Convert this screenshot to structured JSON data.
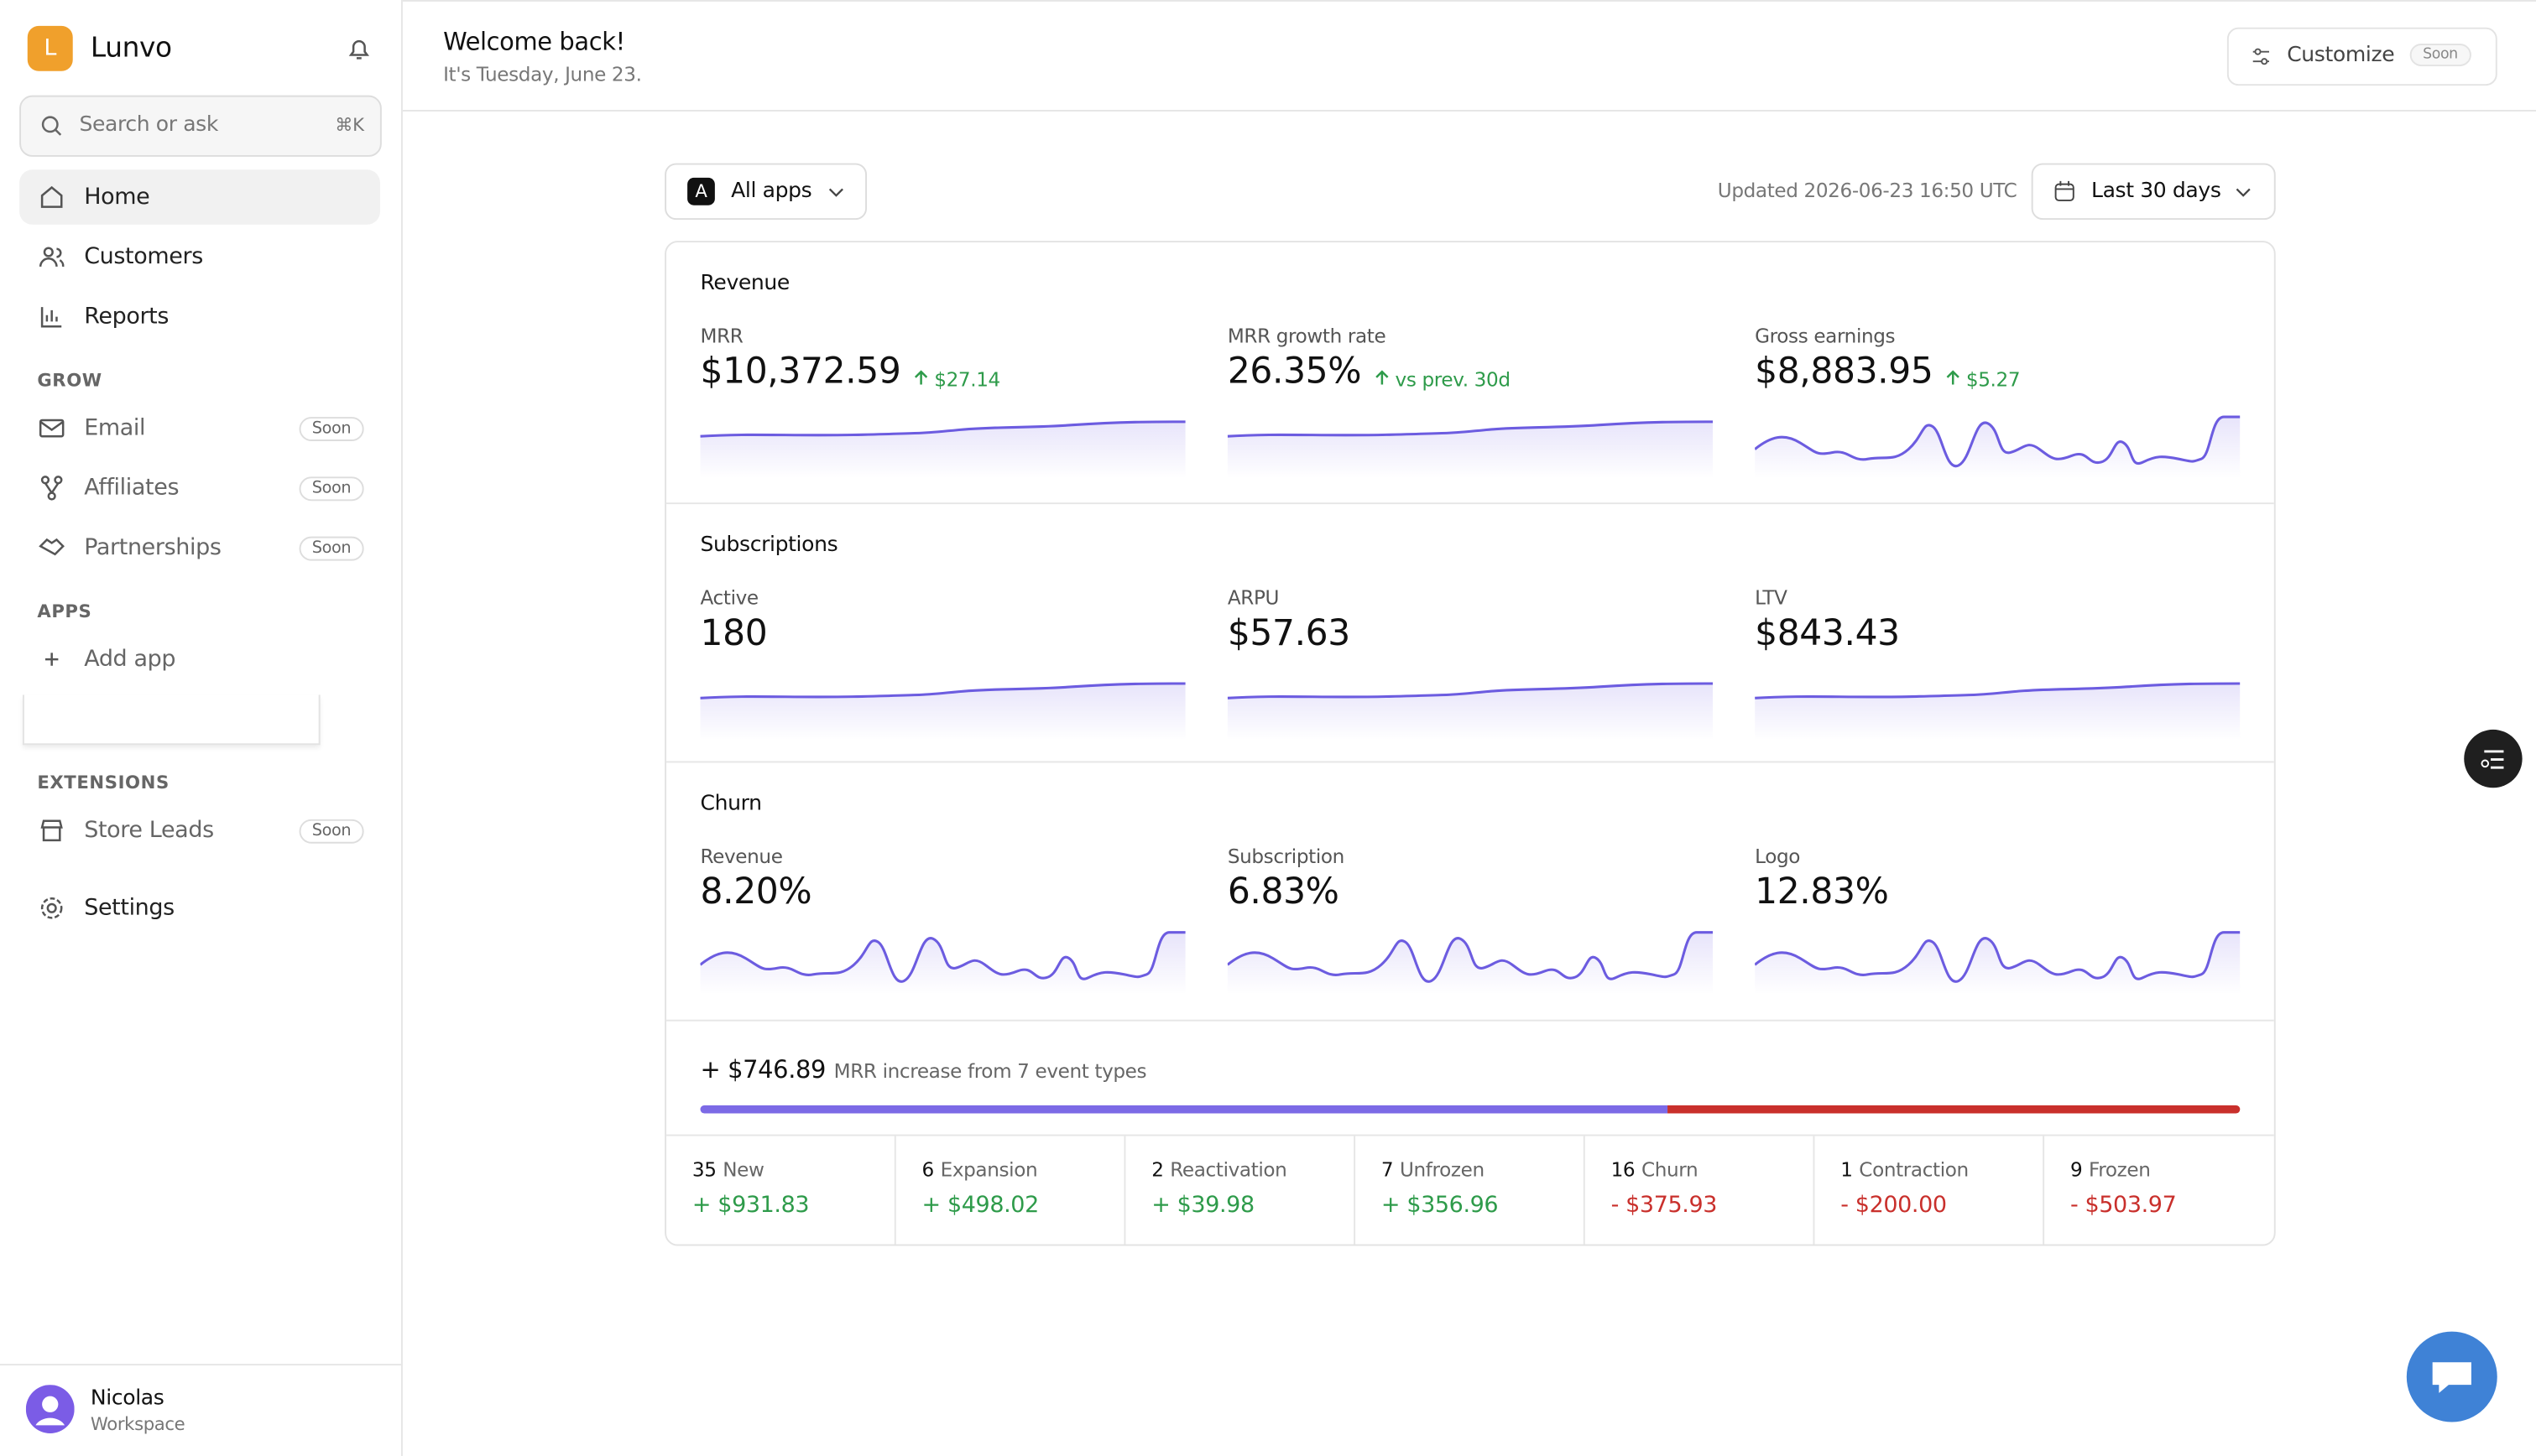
{
  "sidebar": {
    "brand_initial": "L",
    "brand": "Lunvo",
    "search": "Search or ask",
    "shortcut": "⌘K",
    "nav": [
      {
        "label": "Home"
      },
      {
        "label": "Customers"
      },
      {
        "label": "Reports"
      }
    ],
    "groups": [
      {
        "title": "GROW",
        "items": [
          {
            "label": "Email",
            "badge": "Soon"
          },
          {
            "label": "Affiliates",
            "badge": "Soon"
          },
          {
            "label": "Partnerships",
            "badge": "Soon"
          }
        ]
      },
      {
        "title": "APPS",
        "items": [
          {
            "label": "Add app"
          }
        ]
      },
      {
        "title": "EXTENSIONS",
        "items": [
          {
            "label": "Store Leads",
            "badge": "Soon"
          }
        ]
      }
    ],
    "settings": "Settings",
    "user": {
      "name": "Nicolas",
      "workspace": "Workspace"
    }
  },
  "header": {
    "title": "Welcome back!",
    "subtitle": "It's Tuesday, June 23.",
    "customize": "Customize",
    "badge": "Soon"
  },
  "toolbar": {
    "app_initial": "A",
    "app": "All apps",
    "updated": "Updated 2026-06-23 16:50 UTC",
    "range": "Last 30 days"
  },
  "sections": [
    {
      "title": "Revenue",
      "metrics": [
        {
          "label": "MRR",
          "value": "$10,372.59",
          "change": "$27.14"
        },
        {
          "label": "MRR growth rate",
          "value": "26.35%",
          "change": "vs prev. 30d"
        },
        {
          "label": "Gross earnings",
          "value": "$8,883.95",
          "change": "$5.27"
        }
      ]
    },
    {
      "title": "Subscriptions",
      "metrics": [
        {
          "label": "Active",
          "value": "180"
        },
        {
          "label": "ARPU",
          "value": "$57.63"
        },
        {
          "label": "LTV",
          "value": "$843.43"
        }
      ]
    },
    {
      "title": "Churn",
      "metrics": [
        {
          "label": "Revenue",
          "value": "8.20%"
        },
        {
          "label": "Subscription",
          "value": "6.83%"
        },
        {
          "label": "Logo",
          "value": "12.83%"
        }
      ]
    }
  ],
  "summary": {
    "amount": "+ $746.89",
    "text": "MRR increase from 7 event types"
  },
  "events": [
    {
      "count": "35",
      "name": "New",
      "amount": "+ $931.83"
    },
    {
      "count": "6",
      "name": "Expansion",
      "amount": "+ $498.02"
    },
    {
      "count": "2",
      "name": "Reactivation",
      "amount": "+ $39.98"
    },
    {
      "count": "7",
      "name": "Unfrozen",
      "amount": "+ $356.96"
    },
    {
      "count": "16",
      "name": "Churn",
      "amount": "- $375.93"
    },
    {
      "count": "1",
      "name": "Contraction",
      "amount": "- $200.00"
    },
    {
      "count": "9",
      "name": "Frozen",
      "amount": "- $503.97"
    }
  ]
}
